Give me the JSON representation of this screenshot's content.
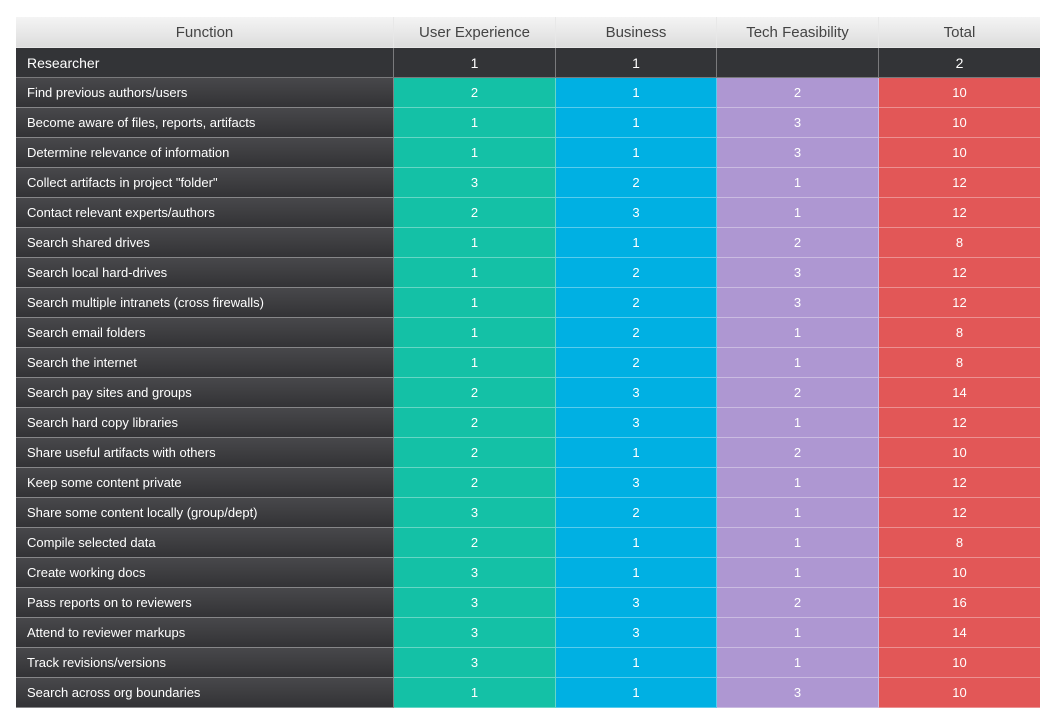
{
  "table": {
    "columns": [
      "Function",
      "User Experience",
      "Business",
      "Tech Feasibility",
      "Total"
    ],
    "rows": [
      [
        "Researcher",
        1,
        1,
        null,
        2
      ],
      [
        "Find previous authors/users",
        2,
        1,
        2,
        10
      ],
      [
        "Become aware of files, reports, artifacts",
        1,
        1,
        3,
        10
      ],
      [
        "Determine relevance of information",
        1,
        1,
        3,
        10
      ],
      [
        "Collect artifacts in project \"folder\"",
        3,
        2,
        1,
        12
      ],
      [
        "Contact relevant experts/authors",
        2,
        3,
        1,
        12
      ],
      [
        "Search shared drives",
        1,
        1,
        2,
        8
      ],
      [
        "Search local hard-drives",
        1,
        2,
        3,
        12
      ],
      [
        "Search multiple intranets (cross firewalls)",
        1,
        2,
        3,
        12
      ],
      [
        "Search email folders",
        1,
        2,
        1,
        8
      ],
      [
        "Search the internet",
        1,
        2,
        1,
        8
      ],
      [
        "Search pay sites and groups",
        2,
        3,
        2,
        14
      ],
      [
        "Search hard copy libraries",
        2,
        3,
        1,
        12
      ],
      [
        "Share useful artifacts with others",
        2,
        1,
        2,
        10
      ],
      [
        "Keep some content private",
        2,
        3,
        1,
        12
      ],
      [
        "Share some content locally (group/dept)",
        3,
        2,
        1,
        12
      ],
      [
        "Compile selected data",
        2,
        1,
        1,
        8
      ],
      [
        "Create working docs",
        3,
        1,
        1,
        10
      ],
      [
        "Pass reports on to reviewers",
        3,
        3,
        2,
        16
      ],
      [
        "Attend to reviewer markups",
        3,
        3,
        1,
        14
      ],
      [
        "Track revisions/versions",
        3,
        1,
        1,
        10
      ],
      [
        "Search across org boundaries",
        1,
        1,
        3,
        10
      ]
    ]
  }
}
